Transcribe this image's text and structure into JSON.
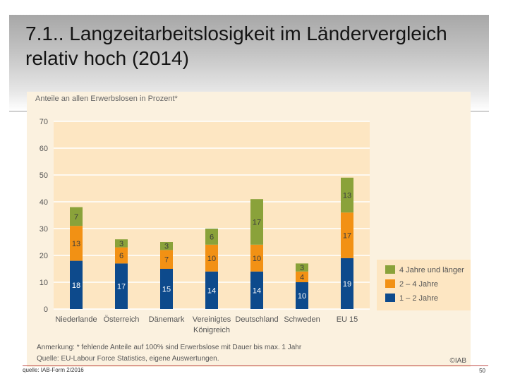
{
  "slide": {
    "title": "7.1.. Langzeitarbeitslosigkeit im Ländervergleich relativ hoch (2014)",
    "source_footer": "quelle: IAB-Form 2/2016",
    "page_number": "50"
  },
  "chart_data": {
    "type": "bar",
    "stacked": true,
    "title": "Anteile an allen Erwerbslosen in Prozent*",
    "xlabel": "",
    "ylabel": "",
    "ylim": [
      0,
      70
    ],
    "yticks": [
      0,
      10,
      20,
      30,
      40,
      50,
      60,
      70
    ],
    "categories": [
      "Niederlande",
      "Österreich",
      "Dänemark",
      "Vereinigtes Königreich",
      "Deutschland",
      "Schweden",
      "EU 15"
    ],
    "series": [
      {
        "name": "1 – 2 Jahre",
        "color": "#0d4a8c",
        "values": [
          18,
          17,
          15,
          14,
          14,
          10,
          19
        ]
      },
      {
        "name": "2 – 4 Jahre",
        "color": "#f29114",
        "values": [
          13,
          6,
          7,
          10,
          10,
          4,
          17
        ]
      },
      {
        "name": "4 Jahre und länger",
        "color": "#8aa23a",
        "values": [
          7,
          3,
          3,
          6,
          17,
          3,
          13
        ]
      }
    ],
    "legend": "right",
    "note": "Anmerkung: * fehlende Anteile auf 100% sind Erwerbslose mit Dauer bis max. 1 Jahr",
    "source": "Quelle: EU-Labour Force Statistics, eigene Auswertungen.",
    "copyright": "©IAB"
  }
}
